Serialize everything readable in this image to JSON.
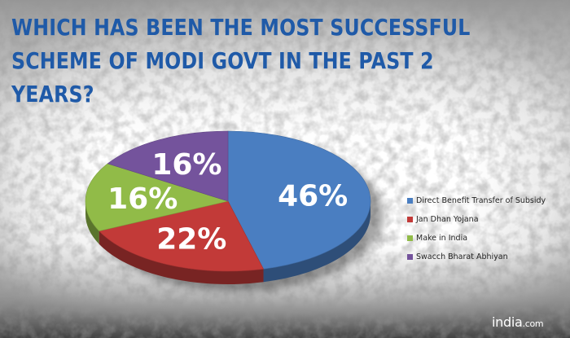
{
  "header": {
    "title": "WHICH HAS BEEN THE MOST SUCCESSFUL SCHEME OF MODI GOVT IN THE PAST 2 YEARS?"
  },
  "chart_data": {
    "type": "pie",
    "title": "WHICH HAS BEEN THE MOST SUCCESSFUL SCHEME OF MODI GOVT IN THE PAST 2 YEARS?",
    "categories": [
      "Direct Benefit Transfer of Subsidy",
      "Jan Dhan Yojana",
      "Make in India",
      "Swacch Bharat Abhiyan"
    ],
    "values": [
      46,
      22,
      16,
      16
    ],
    "data_labels": [
      "46%",
      "22%",
      "16%",
      "16%"
    ],
    "colors": [
      "#4a7ec1",
      "#c23a38",
      "#91bb48",
      "#74539c"
    ],
    "legend_position": "right",
    "style": "3d-tilted"
  },
  "brand": {
    "logo_main": "india",
    "logo_suffix": ".com"
  }
}
